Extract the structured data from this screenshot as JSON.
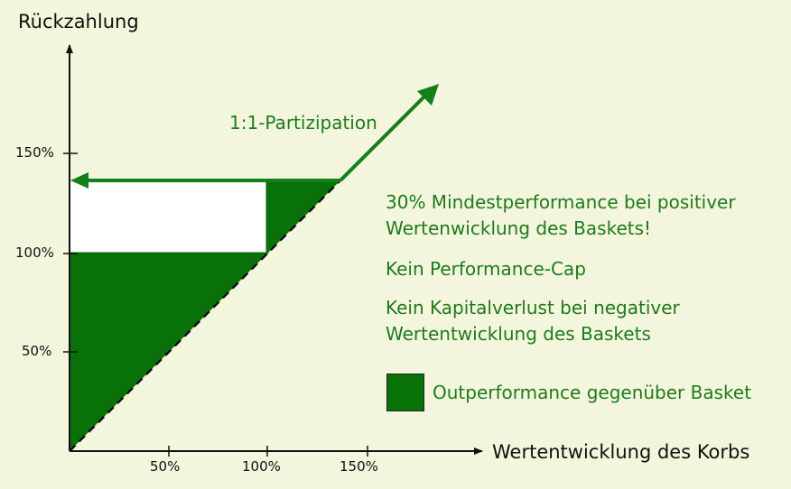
{
  "axes": {
    "y_title": "Rückzahlung",
    "x_title": "Wertentwicklung des Korbs",
    "y_ticks": [
      "50%",
      "100%",
      "150%"
    ],
    "x_ticks": [
      "50%",
      "100%",
      "150%"
    ]
  },
  "annotations": {
    "participation": "1:1-Partizipation"
  },
  "statements": {
    "min_performance_line1": "30% Mindestperformance bei positiver",
    "min_performance_line2": "Wertenwicklung des Baskets!",
    "no_cap": "Kein Performance-Cap",
    "no_loss_line1": "Kein Kapitalverlust bei negativer",
    "no_loss_line2": "Wertentwicklung des Baskets"
  },
  "legend": {
    "outperformance": "Outperformance gegenüber Basket"
  },
  "colors": {
    "background": "#F3F6DC",
    "fill_green": "#087208",
    "text_green": "#1E7A1E",
    "arrow_green": "#11801A"
  }
}
